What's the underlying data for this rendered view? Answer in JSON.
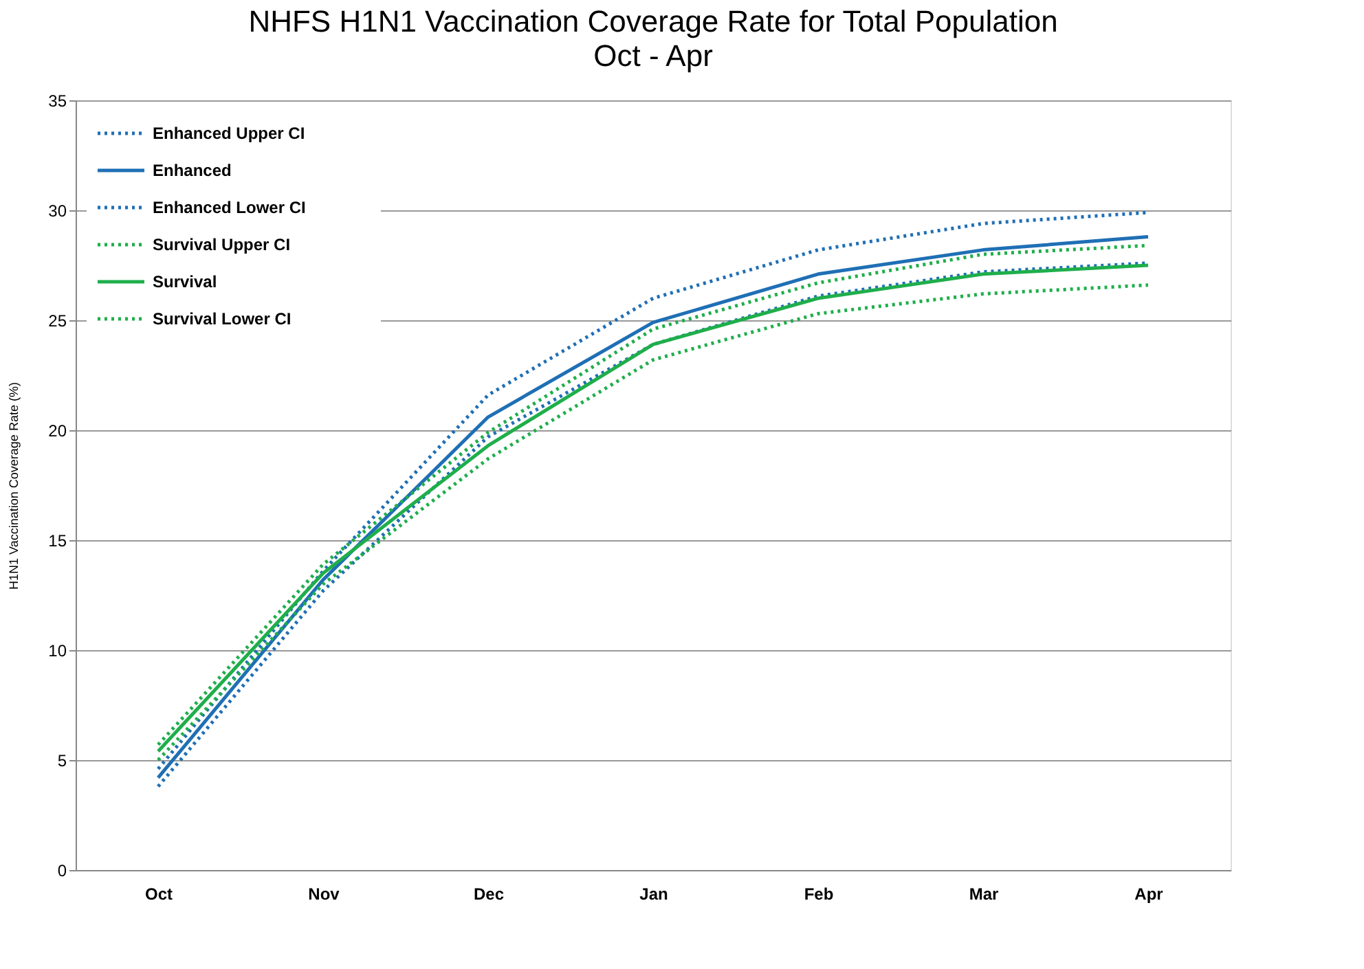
{
  "chart_data": {
    "type": "line",
    "title": "NHFS H1N1 Vaccination Coverage Rate for Total Population",
    "subtitle": "Oct - Apr",
    "ylabel": "H1N1 Vaccination  Coverage Rate (%)",
    "categories": [
      "Oct",
      "Nov",
      "Dec",
      "Jan",
      "Feb",
      "Mar",
      "Apr"
    ],
    "ylim": [
      0,
      35
    ],
    "yticks": [
      0,
      5,
      10,
      15,
      20,
      25,
      30,
      35
    ],
    "grid": "y",
    "legend": "top left",
    "marker": "none",
    "series": [
      {
        "name": "Enhanced Upper CI",
        "color": "#1f6fb5",
        "line_style": "dotted",
        "values": [
          4.6,
          13.6,
          21.6,
          26.0,
          28.2,
          29.4,
          29.9
        ]
      },
      {
        "name": "Enhanced",
        "color": "#1f6fb5",
        "line_style": "solid",
        "values": [
          4.2,
          13.2,
          20.6,
          24.9,
          27.1,
          28.2,
          28.8
        ]
      },
      {
        "name": "Enhanced Lower CI",
        "color": "#1f6fb5",
        "line_style": "dotted",
        "values": [
          3.8,
          12.7,
          19.7,
          23.9,
          26.1,
          27.2,
          27.6
        ]
      },
      {
        "name": "Survival Upper CI",
        "color": "#1fae4b",
        "line_style": "dotted",
        "values": [
          5.7,
          13.9,
          19.9,
          24.6,
          26.7,
          28.0,
          28.4
        ]
      },
      {
        "name": "Survival",
        "color": "#1fae4b",
        "line_style": "solid",
        "values": [
          5.4,
          13.5,
          19.3,
          23.9,
          26.0,
          27.1,
          27.5
        ]
      },
      {
        "name": "Survival Lower CI",
        "color": "#1fae4b",
        "line_style": "dotted",
        "values": [
          5.0,
          13.0,
          18.7,
          23.2,
          25.3,
          26.2,
          26.6
        ]
      }
    ]
  }
}
